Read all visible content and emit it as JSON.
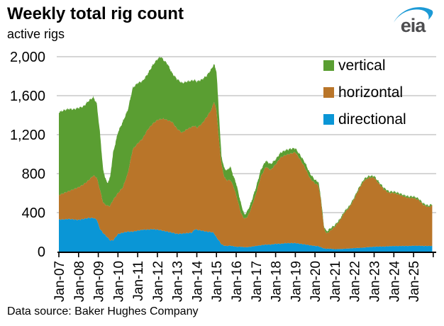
{
  "header": {
    "title": "Weekly total rig count",
    "subtitle": "active rigs",
    "logo_text": "eia"
  },
  "footer": {
    "source": "Data source: Baker Hughes Company"
  },
  "colors": {
    "grid": "#BEBEBE",
    "axis": "#000000",
    "text": "#000000",
    "logo_gray": "#4D4D4F",
    "logo_blue": "#1C9AD6"
  },
  "chart_data": {
    "type": "area",
    "stacked": true,
    "title": "Weekly total rig count",
    "ylabel": "active rigs",
    "xlabel": "",
    "grid": true,
    "legend_position": "top-right-inside",
    "ylim": [
      0,
      2000
    ],
    "xlim": [
      2007.0,
      2026.15
    ],
    "y_ticks": [
      0,
      400,
      800,
      1200,
      1600,
      2000
    ],
    "y_tick_labels": [
      "0",
      "400",
      "800",
      "1,200",
      "1,600",
      "2,000"
    ],
    "x_tick_years": [
      2007,
      2008,
      2009,
      2010,
      2011,
      2012,
      2013,
      2014,
      2015,
      2016,
      2017,
      2018,
      2019,
      2020,
      2021,
      2022,
      2023,
      2024,
      2025
    ],
    "x_tick_labels": [
      "Jan-07",
      "Jan-08",
      "Jan-09",
      "Jan-10",
      "Jan-11",
      "Jan-12",
      "Jan-13",
      "Jan-14",
      "Jan-15",
      "Jan-16",
      "Jan-17",
      "Jan-18",
      "Jan-19",
      "Jan-20",
      "Jan-21",
      "Jan-22",
      "Jan-23",
      "Jan-24",
      "Jan-25"
    ],
    "x_axis_extra_tick": 2026,
    "legend": [
      {
        "label": "vertical",
        "color": "#5A9E32"
      },
      {
        "label": "horizontal",
        "color": "#B97529"
      },
      {
        "label": "directional",
        "color": "#0A96D6"
      }
    ],
    "x_unit": "decimal_year",
    "x": [
      2007.0,
      2007.25,
      2007.5,
      2007.75,
      2008.0,
      2008.25,
      2008.5,
      2008.75,
      2008.92,
      2009.08,
      2009.25,
      2009.45,
      2009.6,
      2009.75,
      2010.0,
      2010.25,
      2010.5,
      2010.75,
      2011.0,
      2011.25,
      2011.5,
      2011.75,
      2012.0,
      2012.17,
      2012.33,
      2012.5,
      2012.75,
      2013.0,
      2013.25,
      2013.5,
      2013.75,
      2013.9,
      2014.0,
      2014.25,
      2014.5,
      2014.75,
      2014.87,
      2015.0,
      2015.1,
      2015.25,
      2015.4,
      2015.55,
      2015.7,
      2015.85,
      2016.0,
      2016.25,
      2016.42,
      2016.58,
      2016.75,
      2017.0,
      2017.25,
      2017.5,
      2017.75,
      2018.0,
      2018.25,
      2018.5,
      2018.75,
      2019.0,
      2019.25,
      2019.5,
      2019.75,
      2020.0,
      2020.17,
      2020.3,
      2020.45,
      2020.58,
      2020.75,
      2021.0,
      2021.25,
      2021.5,
      2021.75,
      2022.0,
      2022.25,
      2022.5,
      2022.75,
      2023.0,
      2023.25,
      2023.5,
      2023.75,
      2024.0,
      2024.25,
      2024.5,
      2024.75,
      2025.0,
      2025.25,
      2025.5,
      2025.75,
      2025.95
    ],
    "series": [
      {
        "name": "directional",
        "color": "#0A96D6",
        "values": [
          330,
          330,
          335,
          330,
          325,
          335,
          345,
          345,
          330,
          235,
          190,
          150,
          115,
          115,
          180,
          195,
          205,
          205,
          215,
          225,
          225,
          230,
          225,
          220,
          212,
          205,
          195,
          182,
          185,
          190,
          195,
          230,
          225,
          215,
          205,
          200,
          190,
          145,
          120,
          75,
          60,
          58,
          62,
          55,
          50,
          50,
          45,
          46,
          50,
          58,
          65,
          72,
          72,
          80,
          80,
          86,
          87,
          87,
          80,
          73,
          65,
          58,
          55,
          45,
          33,
          29,
          30,
          25,
          27,
          29,
          32,
          36,
          38,
          42,
          46,
          50,
          52,
          52,
          55,
          57,
          57,
          58,
          58,
          60,
          60,
          58,
          58,
          58
        ]
      },
      {
        "name": "horizontal",
        "color": "#B97529",
        "values": [
          250,
          270,
          285,
          310,
          335,
          355,
          385,
          435,
          430,
          405,
          310,
          320,
          355,
          415,
          420,
          465,
          600,
          845,
          895,
          935,
          1025,
          1080,
          1125,
          1140,
          1150,
          1145,
          1135,
          1078,
          1035,
          1065,
          1085,
          1060,
          1045,
          1095,
          1175,
          1260,
          1350,
          1305,
          1080,
          825,
          700,
          672,
          673,
          620,
          530,
          340,
          290,
          314,
          390,
          532,
          705,
          798,
          766,
          815,
          885,
          904,
          918,
          933,
          865,
          785,
          685,
          642,
          625,
          480,
          212,
          156,
          180,
          230,
          288,
          371,
          423,
          509,
          612,
          688,
          714,
          710,
          643,
          586,
          547,
          544,
          528,
          507,
          492,
          490,
          470,
          421,
          399,
          414
        ]
      },
      {
        "name": "vertical",
        "color": "#5A9E32",
        "values": [
          850,
          850,
          845,
          820,
          815,
          800,
          815,
          805,
          760,
          590,
          330,
          230,
          290,
          480,
          625,
          675,
          650,
          630,
          620,
          590,
          570,
          600,
          625,
          640,
          600,
          580,
          500,
          510,
          510,
          490,
          475,
          470,
          475,
          455,
          425,
          415,
          385,
          400,
          300,
          80,
          90,
          105,
          138,
          105,
          120,
          95,
          40,
          60,
          60,
          65,
          68,
          62,
          60,
          50,
          50,
          50,
          50,
          40,
          45,
          52,
          50,
          35,
          35,
          30,
          20,
          20,
          25,
          15,
          15,
          15,
          15,
          15,
          15,
          18,
          17,
          16,
          17,
          15,
          15,
          15,
          16,
          16,
          16,
          16,
          15,
          15,
          15,
          15
        ]
      }
    ]
  }
}
